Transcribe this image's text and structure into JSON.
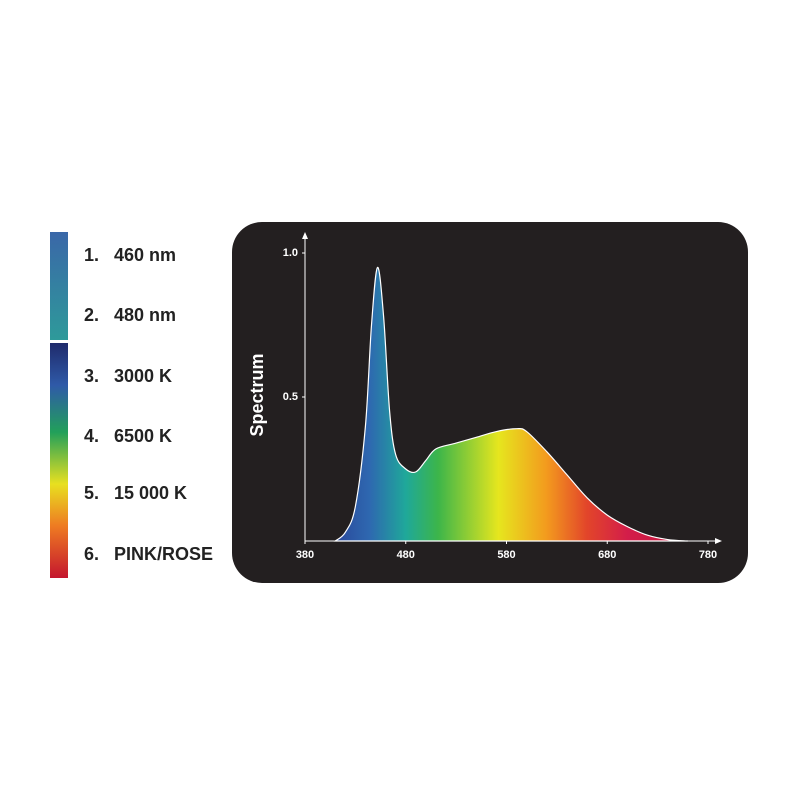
{
  "chart_data": {
    "type": "area",
    "ylabel": "Spectrum",
    "series": [
      {
        "x": [
          410,
          420,
          430,
          440,
          446,
          452,
          458,
          464,
          470,
          480,
          490,
          500,
          510,
          530,
          550,
          570,
          590,
          600,
          620,
          640,
          660,
          680,
          700,
          720,
          740,
          760
        ],
        "values": [
          0,
          0.03,
          0.12,
          0.4,
          0.75,
          0.95,
          0.78,
          0.45,
          0.3,
          0.25,
          0.24,
          0.28,
          0.32,
          0.34,
          0.36,
          0.38,
          0.39,
          0.38,
          0.31,
          0.23,
          0.15,
          0.09,
          0.05,
          0.02,
          0.005,
          0
        ]
      }
    ],
    "xlim": [
      380,
      780
    ],
    "xticks": [
      380,
      480,
      580,
      680,
      780
    ],
    "ylim": [
      0,
      1
    ],
    "yticks": [
      0.5,
      {
        "value": 1,
        "label": "1.0"
      }
    ]
  },
  "side_list": {
    "items": [
      {
        "number": "1.",
        "label": "460 nm"
      },
      {
        "number": "2.",
        "label": "480 nm"
      },
      {
        "number": "3.",
        "label": "3000 K"
      },
      {
        "number": "4.",
        "label": "6500 K"
      },
      {
        "number": "5.",
        "label": "15 000 K"
      },
      {
        "number": "6.",
        "label": "PINK/ROSE"
      }
    ]
  }
}
